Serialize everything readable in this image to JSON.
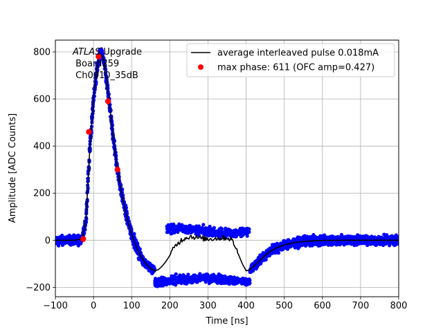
{
  "chart_data": {
    "type": "scatter",
    "title": "",
    "xlabel": "Time [ns]",
    "ylabel": "Amplitude [ADC Counts]",
    "xlim": [
      -100,
      800
    ],
    "ylim": [
      -240,
      850
    ],
    "xticks": [
      -100,
      0,
      100,
      200,
      300,
      400,
      500,
      600,
      700,
      800
    ],
    "yticks": [
      -200,
      0,
      200,
      400,
      600,
      800
    ],
    "grid": true,
    "legend_position": "top-right",
    "annotation": {
      "line1_italic": "ATLAS",
      "line1_rest": " Upgrade",
      "line2": " Board259",
      "line3": " Ch0010_35dB"
    },
    "colors": {
      "samples": "#0000ff",
      "average": "#000000",
      "max_phase": "#ff0000",
      "grid": "#b0b0b0"
    },
    "series": [
      {
        "name": "average interleaved pulse 0.018mA",
        "kind": "line",
        "color": "#000000",
        "x": [
          -100,
          -50,
          -30,
          -20,
          -10,
          0,
          10,
          15,
          20,
          25,
          30,
          40,
          50,
          60,
          70,
          80,
          90,
          100,
          110,
          120,
          130,
          140,
          150,
          160,
          170,
          180,
          190,
          200,
          210,
          220,
          230,
          240,
          250,
          260,
          280,
          300,
          320,
          340,
          350,
          360,
          370,
          380,
          390,
          400,
          410,
          420,
          430,
          440,
          450,
          460,
          480,
          500,
          520,
          540,
          560,
          580,
          600,
          650,
          700,
          750,
          800
        ],
        "y": [
          0,
          0,
          5,
          80,
          380,
          600,
          740,
          780,
          790,
          775,
          730,
          600,
          460,
          330,
          230,
          150,
          80,
          25,
          -20,
          -55,
          -85,
          -105,
          -120,
          -130,
          -125,
          -110,
          -90,
          -65,
          -35,
          -15,
          0,
          10,
          15,
          15,
          8,
          5,
          8,
          10,
          10,
          5,
          -20,
          -60,
          -100,
          -130,
          -125,
          -110,
          -95,
          -80,
          -65,
          -50,
          -32,
          -20,
          -12,
          -7,
          -4,
          -2,
          -1,
          0,
          0,
          0,
          0
        ]
      },
      {
        "name": "max phase: 611 (OFC amp=0.427)",
        "kind": "points",
        "color": "#ff0000",
        "x": [
          -27,
          -12,
          13,
          38,
          63
        ],
        "y": [
          5,
          460,
          780,
          590,
          300
        ]
      }
    ]
  }
}
